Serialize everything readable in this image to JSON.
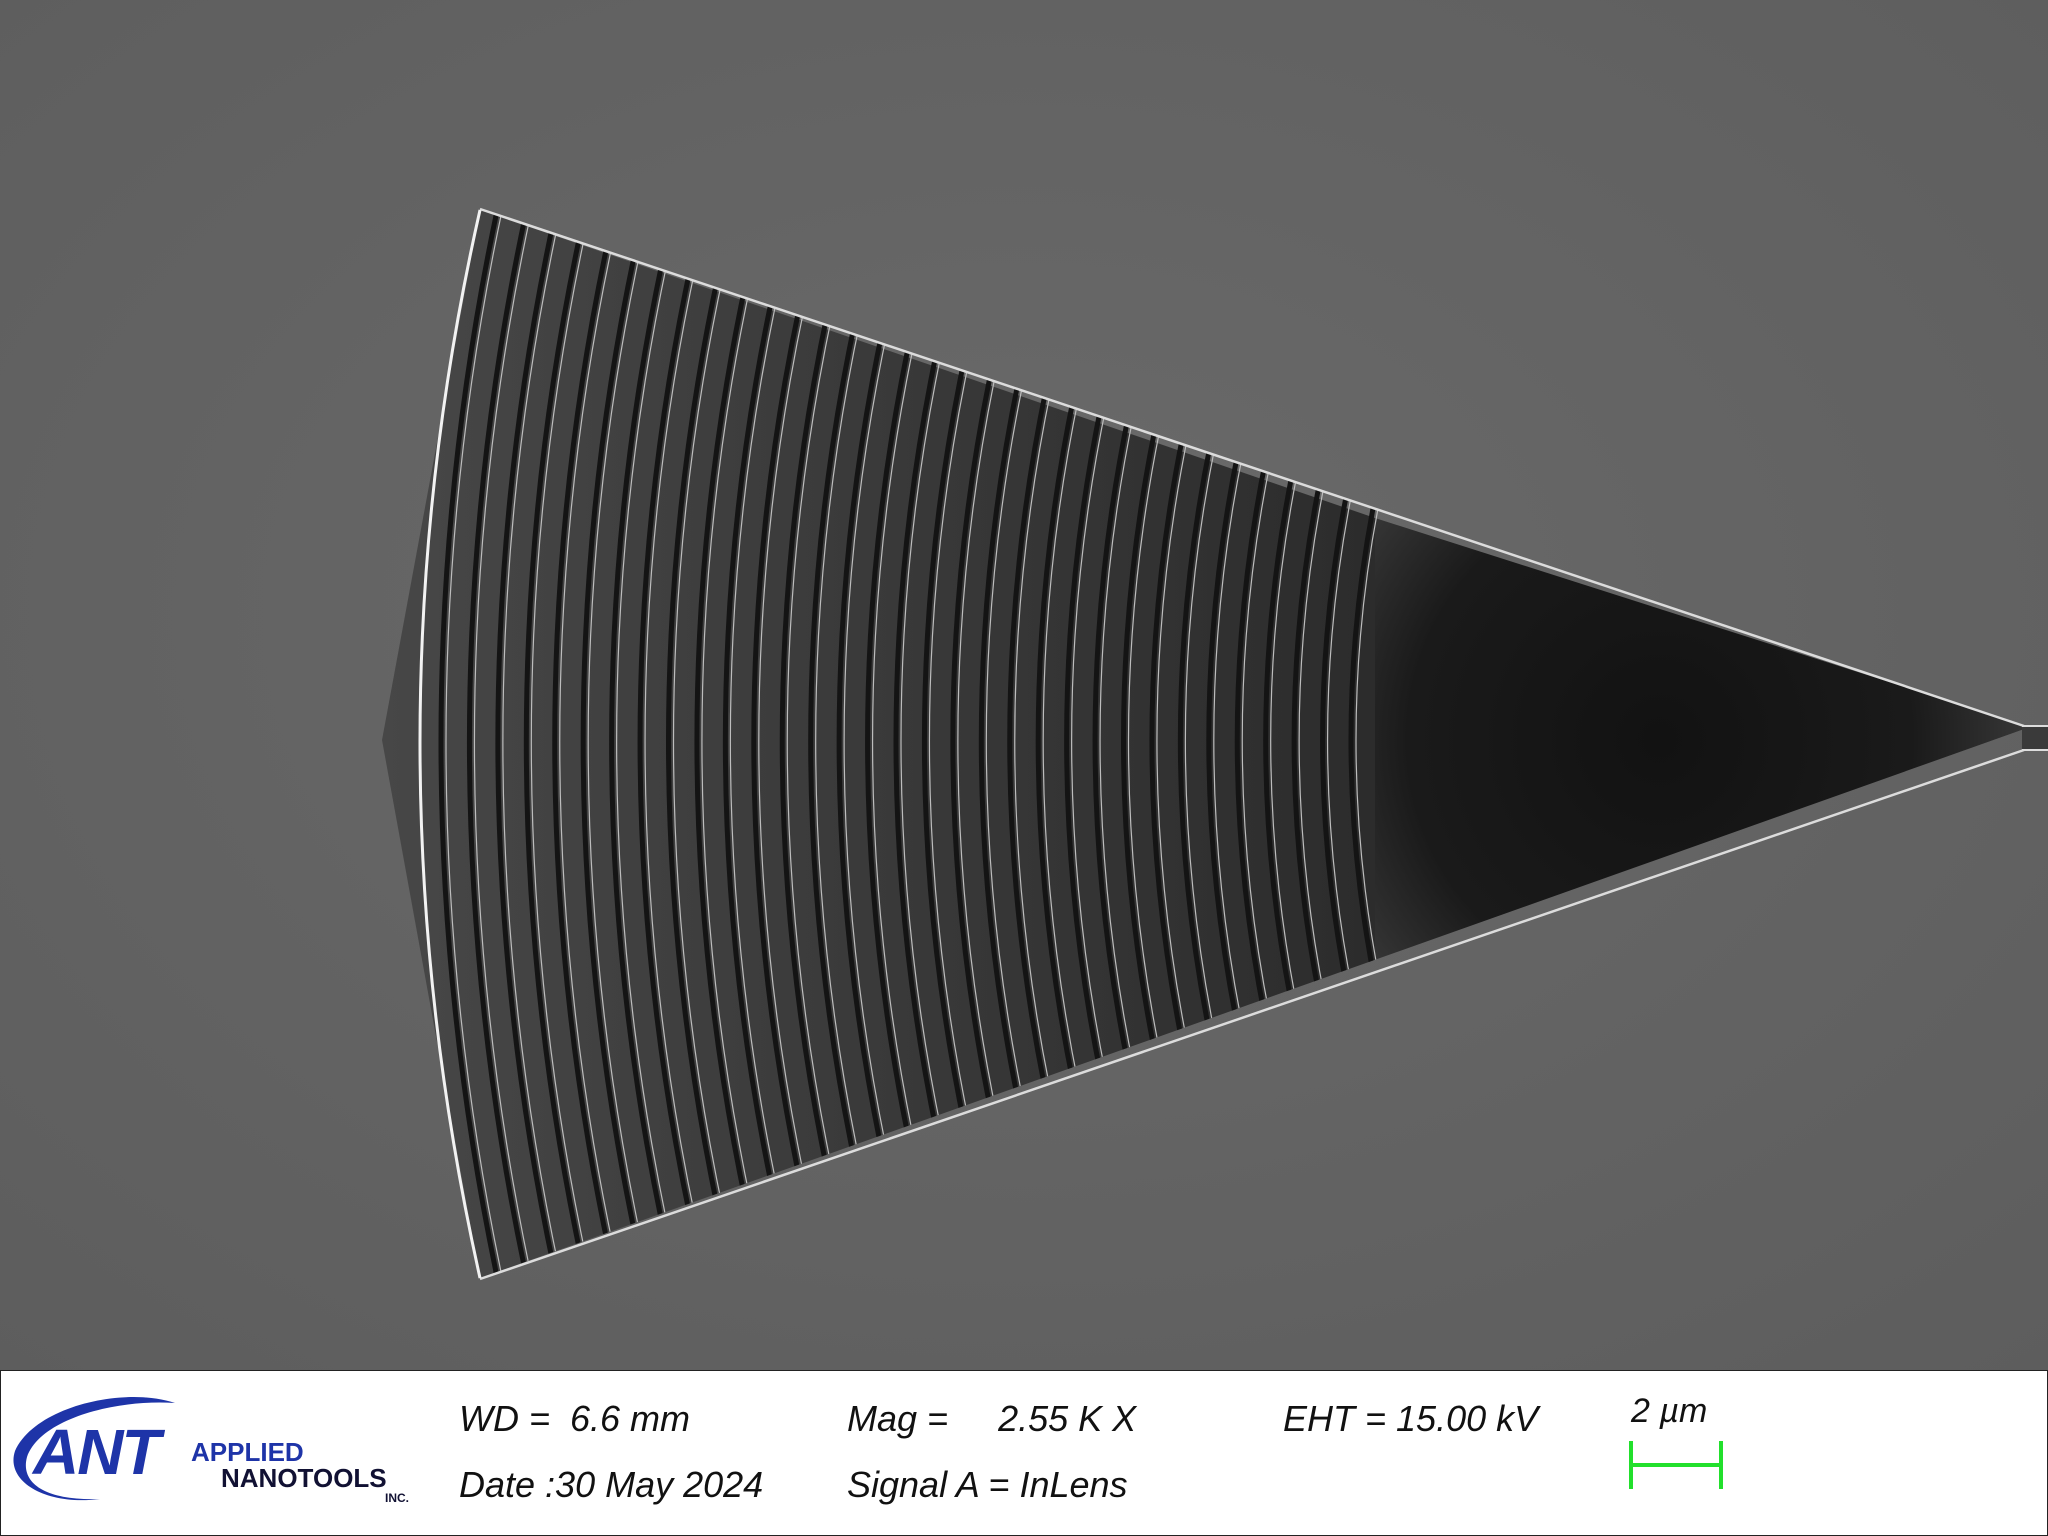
{
  "image": {
    "subject": "sem-micrograph-grating-coupler",
    "background_color": "#626262",
    "device_color": "#2e2e2e",
    "edge_color": "#e6e6e6"
  },
  "info_bar": {
    "logo": {
      "mark": "ANT",
      "line1": "APPLIED",
      "line2": "NANOTOOLS",
      "line3": "INC.",
      "color": "#1e34a8"
    },
    "wd": "WD =  6.6 mm",
    "date": "Date :30 May 2024",
    "mag": "Mag =     2.55 K X",
    "signal": "Signal A = InLens",
    "eht": "EHT = 15.00 kV",
    "scale_label": "2 µm",
    "scale_color": "#22e02c"
  }
}
